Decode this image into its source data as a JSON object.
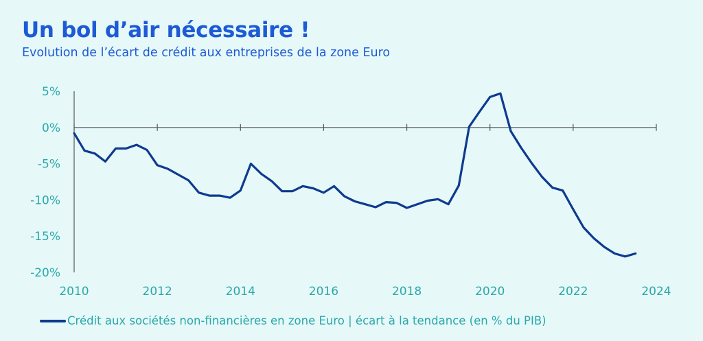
{
  "title": "Un bol d’air nécessaire !",
  "subtitle": "Evolution de l’écart de crédit aux entreprises de la zone Euro",
  "chart_data": {
    "type": "line",
    "title": "Un bol d’air nécessaire !",
    "subtitle": "Evolution de l’écart de crédit aux entreprises de la zone Euro",
    "xlabel": "",
    "ylabel": "",
    "xlim": [
      2010,
      2024
    ],
    "ylim": [
      -20,
      5
    ],
    "x_ticks": [
      "2010",
      "2012",
      "2014",
      "2016",
      "2018",
      "2020",
      "2022",
      "2024"
    ],
    "y_ticks": [
      "5%",
      "0%",
      "-5%",
      "-10%",
      "-15%",
      "-20%"
    ],
    "grid": false,
    "legend": "bottom",
    "series": [
      {
        "name": "Crédit aux sociétés non-financières en zone Euro | écart à la tendance (en % du PIB)",
        "color": "#0e3a8f",
        "x": [
          2010,
          2010.25,
          2010.5,
          2010.75,
          2011,
          2011.25,
          2011.5,
          2011.75,
          2012,
          2012.25,
          2012.5,
          2012.75,
          2013,
          2013.25,
          2013.5,
          2013.75,
          2014,
          2014.25,
          2014.5,
          2014.75,
          2015,
          2015.25,
          2015.5,
          2015.75,
          2016,
          2016.25,
          2016.5,
          2016.75,
          2017,
          2017.25,
          2017.5,
          2017.75,
          2018,
          2018.25,
          2018.5,
          2018.75,
          2019,
          2019.25,
          2019.5,
          2019.75,
          2020,
          2020.25,
          2020.5,
          2020.75,
          2021,
          2021.25,
          2021.5,
          2021.75,
          2022,
          2022.25,
          2022.5,
          2022.75,
          2023,
          2023.25,
          2023.5
        ],
        "values": [
          -0.8,
          -3.2,
          -3.6,
          -4.7,
          -2.9,
          -2.9,
          -2.4,
          -3.1,
          -5.2,
          -5.7,
          -6.5,
          -7.3,
          -9.0,
          -9.4,
          -9.4,
          -9.7,
          -8.7,
          -5.0,
          -6.4,
          -7.4,
          -8.8,
          -8.8,
          -8.1,
          -8.4,
          -9.0,
          -8.1,
          -9.5,
          -10.2,
          -10.6,
          -11.0,
          -10.3,
          -10.4,
          -11.1,
          -10.6,
          -10.1,
          -9.9,
          -10.6,
          -8.0,
          0.1,
          2.2,
          4.2,
          4.7,
          -0.5,
          -2.8,
          -4.9,
          -6.8,
          -8.3,
          -8.7,
          -11.3,
          -13.8,
          -15.3,
          -16.5,
          -17.4,
          -17.8,
          -17.4
        ]
      }
    ]
  },
  "legend": {
    "label": "Crédit aux sociétés non-financières en zone Euro | écart à la tendance (en % du PIB)"
  }
}
